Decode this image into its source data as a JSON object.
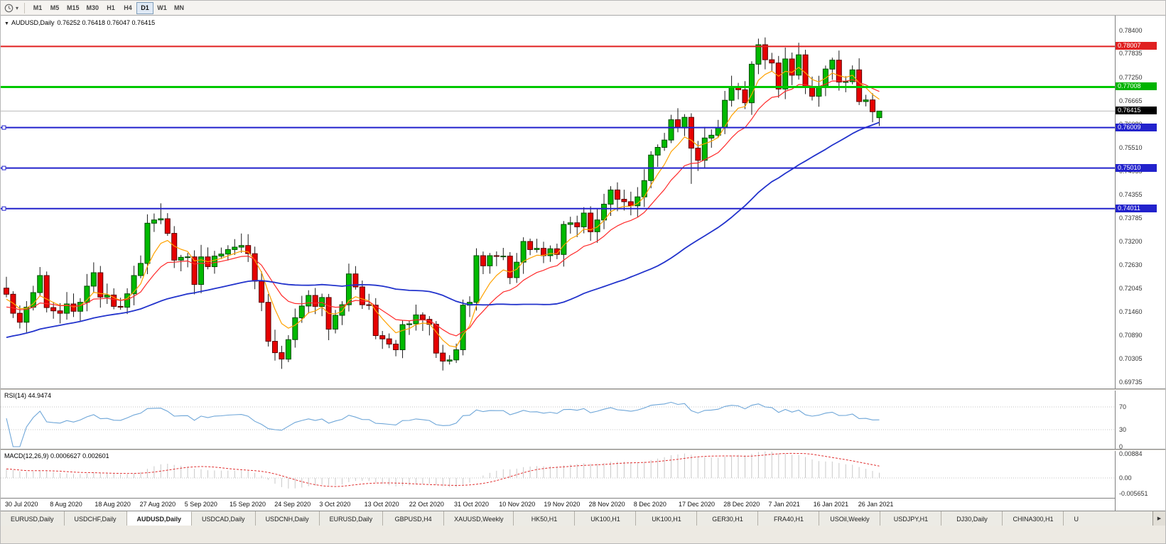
{
  "toolbar": {
    "timeframes": [
      "M1",
      "M5",
      "M15",
      "M30",
      "H1",
      "H4",
      "D1",
      "W1",
      "MN"
    ],
    "active_timeframe": "D1",
    "period_icon": "clock-icon",
    "dropdown_icon": "caret-down"
  },
  "chart_header": {
    "symbol_label": "AUDUSD,Daily",
    "quote": "0.76252 0.76418 0.76047 0.76415"
  },
  "price_axis": {
    "labels": [
      "0.78400",
      "0.77835",
      "0.77250",
      "0.76665",
      "0.76080",
      "0.75510",
      "0.74935",
      "0.74355",
      "0.73785",
      "0.73200",
      "0.72630",
      "0.72045",
      "0.71460",
      "0.70890",
      "0.70305",
      "0.69735"
    ],
    "tags": [
      {
        "label": "0.78007",
        "price": 0.78007,
        "color": "#e02020",
        "name": "resistance-price-tag"
      },
      {
        "label": "0.77008",
        "price": 0.77008,
        "color": "#00b400",
        "name": "support-price-tag"
      },
      {
        "label": "0.76415",
        "price": 0.76415,
        "color": "#000000",
        "name": "bid-price-tag"
      },
      {
        "label": "0.76009",
        "price": 0.76009,
        "color": "#2222cc",
        "name": "level-price-tag"
      },
      {
        "label": "0.75010",
        "price": 0.7501,
        "color": "#2222cc",
        "name": "level-price-tag"
      },
      {
        "label": "0.74011",
        "price": 0.74011,
        "color": "#2222cc",
        "name": "level-price-tag"
      }
    ]
  },
  "date_axis": [
    "30 Jul 2020",
    "8 Aug 2020",
    "18 Aug 2020",
    "27 Aug 2020",
    "5 Sep 2020",
    "15 Sep 2020",
    "24 Sep 2020",
    "3 Oct 2020",
    "13 Oct 2020",
    "22 Oct 2020",
    "31 Oct 2020",
    "10 Nov 2020",
    "19 Nov 2020",
    "28 Nov 2020",
    "8 Dec 2020",
    "17 Dec 2020",
    "28 Dec 2020",
    "7 Jan 2021",
    "16 Jan 2021",
    "26 Jan 2021"
  ],
  "tabbar": {
    "tabs": [
      "EURUSD,Daily",
      "USDCHF,Daily",
      "AUDUSD,Daily",
      "USDCAD,Daily",
      "USDCNH,Daily",
      "EURUSD,Daily",
      "GBPUSD,H4",
      "XAUUSD,Weekly",
      "HK50,H1",
      "UK100,H1",
      "UK100,H1",
      "GER30,H1",
      "FRA40,H1",
      "USOil,Weekly",
      "USDJPY,H1",
      "DJ30,Daily",
      "CHINA300,H1",
      "U"
    ],
    "active_index": 2,
    "scroll_right_icon": "▶"
  },
  "chart_data": {
    "type": "candlestick",
    "symbol": "AUDUSD",
    "timeframe": "Daily",
    "up_color": "#00ba00",
    "down_color": "#e60000",
    "last_candle": {
      "open": 0.76252,
      "high": 0.76418,
      "low": 0.76047,
      "close": 0.76415
    },
    "first_open": 0.7205,
    "closes": [
      0.719,
      0.7143,
      0.7121,
      0.7158,
      0.7194,
      0.7236,
      0.7157,
      0.7149,
      0.7143,
      0.7166,
      0.7148,
      0.717,
      0.721,
      0.7243,
      0.7183,
      0.7188,
      0.716,
      0.7158,
      0.7191,
      0.7236,
      0.7266,
      0.7365,
      0.7373,
      0.7376,
      0.734,
      0.7274,
      0.7281,
      0.7282,
      0.7214,
      0.7282,
      0.7258,
      0.7284,
      0.7289,
      0.73,
      0.7306,
      0.731,
      0.729,
      0.7222,
      0.717,
      0.7074,
      0.7046,
      0.703,
      0.7078,
      0.7132,
      0.7161,
      0.7187,
      0.716,
      0.7182,
      0.7104,
      0.7138,
      0.7164,
      0.724,
      0.7208,
      0.7164,
      0.7163,
      0.7088,
      0.708,
      0.7067,
      0.7053,
      0.7115,
      0.7117,
      0.7139,
      0.7128,
      0.7116,
      0.7045,
      0.7025,
      0.7028,
      0.7053,
      0.7163,
      0.717,
      0.7285,
      0.726,
      0.7285,
      0.7284,
      0.7284,
      0.7231,
      0.7269,
      0.732,
      0.73,
      0.7303,
      0.7285,
      0.7302,
      0.7288,
      0.7362,
      0.7366,
      0.7356,
      0.739,
      0.7344,
      0.7373,
      0.7412,
      0.7447,
      0.7424,
      0.7418,
      0.7408,
      0.743,
      0.747,
      0.7533,
      0.7552,
      0.757,
      0.762,
      0.76,
      0.7626,
      0.755,
      0.752,
      0.7575,
      0.7582,
      0.76,
      0.7668,
      0.77,
      0.7694,
      0.7662,
      0.7757,
      0.7805,
      0.7768,
      0.776,
      0.7696,
      0.777,
      0.773,
      0.778,
      0.7702,
      0.7678,
      0.7699,
      0.7745,
      0.7767,
      0.7713,
      0.7714,
      0.7743,
      0.7665,
      0.7669,
      0.764,
      0.76415
    ],
    "high_overrides": {
      "23": 0.7414,
      "112": 0.782
    },
    "low_overrides": {
      "41": 0.7006,
      "65": 0.7002,
      "102": 0.7462
    },
    "horizontal_levels": [
      {
        "label": "0.78007",
        "price": 0.78007,
        "color": "#e02020",
        "width": 2,
        "name": "resistance-line"
      },
      {
        "label": "0.77008",
        "price": 0.77008,
        "color": "#00c800",
        "width": 3,
        "name": "support-line-green"
      },
      {
        "label": "0.76009",
        "price": 0.76009,
        "color": "#2222cc",
        "width": 2,
        "name": "support-line-blue-1"
      },
      {
        "label": "0.75010",
        "price": 0.7501,
        "color": "#2222cc",
        "width": 2,
        "name": "support-line-blue-2"
      },
      {
        "label": "0.74011",
        "price": 0.74011,
        "color": "#2222cc",
        "width": 2,
        "name": "support-line-blue-3"
      }
    ],
    "bid": {
      "label": "0.76415",
      "price": 0.76415,
      "line_color": "#bcbcbc"
    },
    "moving_averages": [
      {
        "name": "ma-fast-orange",
        "color": "#ffa200",
        "type": "ema",
        "period": 6,
        "width": 1.2
      },
      {
        "name": "ma-medium-red",
        "color": "#ff2a2a",
        "type": "ema",
        "period": 14,
        "width": 1.2
      },
      {
        "name": "ma-slow-blue",
        "color": "#2233cc",
        "type": "sma",
        "period": 45,
        "width": 1.8
      }
    ],
    "rsi": {
      "title": "RSI(14) 44.9474",
      "period": 14,
      "value": 44.9474,
      "levels": [
        70,
        30,
        0
      ],
      "color": "#6ea6d8"
    },
    "macd": {
      "title": "MACD(12,26,9) 0.0006627 0.002601",
      "fast": 12,
      "slow": 26,
      "signal": 9,
      "axis_labels": [
        "0.00884",
        "0.00",
        "-0.005651"
      ],
      "hist_color": "#c9c9c9",
      "signal_color": "#e03030"
    }
  }
}
